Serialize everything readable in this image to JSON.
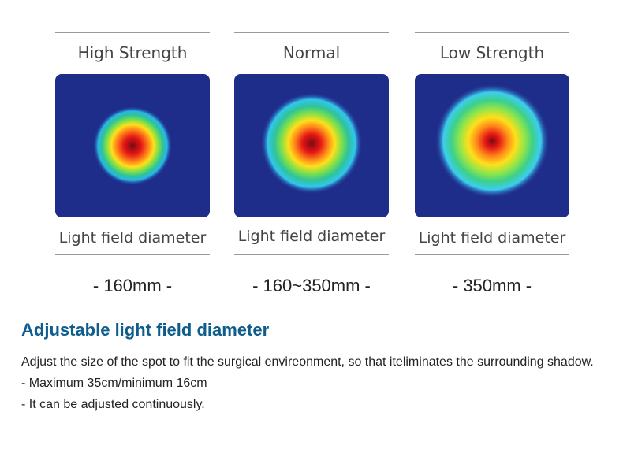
{
  "panels": [
    {
      "title": "High Strength",
      "caption": "Light field diameter",
      "value": "- 160mm -",
      "heatmap_scale": 0.47
    },
    {
      "title": "Normal",
      "caption": "Light field diameter",
      "value": "- 160~350mm -",
      "heatmap_scale": 0.62
    },
    {
      "title": "Low Strength",
      "caption": "Light field diameter",
      "value": "- 350mm -",
      "heatmap_scale": 0.7
    }
  ],
  "section": {
    "title": "Adjustable light field diameter",
    "lines": [
      "Adjust the size of the spot to fit the surgical envireonment, so that iteliminates the surrounding shadow.",
      "- Maximum 35cm/minimum 16cm",
      "- It can be adjusted continuously."
    ]
  },
  "colors": {
    "rule": "#9a9a9a",
    "heading": "#0e5d8c",
    "background_blue": "#1f2d8a",
    "center_red": "#8a0a0a"
  }
}
